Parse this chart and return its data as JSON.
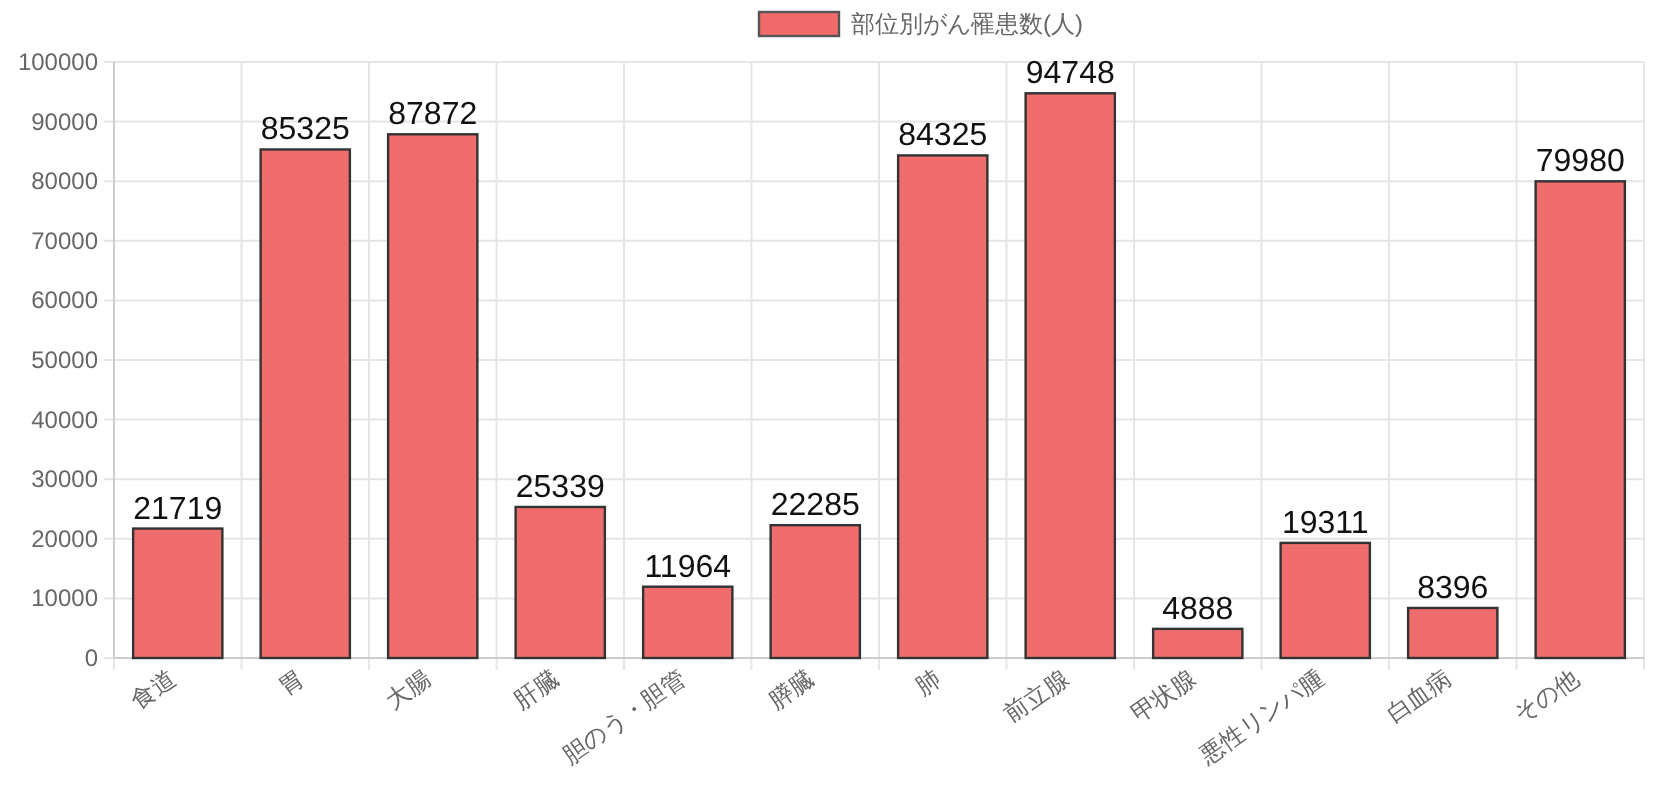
{
  "chart_data": {
    "type": "bar",
    "categories": [
      "食道",
      "胃",
      "大腸",
      "肝臓",
      "胆のう・胆管",
      "膵臓",
      "肺",
      "前立腺",
      "甲状腺",
      "悪性リンパ腫",
      "白血病",
      "その他"
    ],
    "series": [
      {
        "name": "部位別がん罹患数(人)",
        "color": "#f06a6a",
        "values": [
          21719,
          85325,
          87872,
          25339,
          11964,
          22285,
          84325,
          94748,
          4888,
          19311,
          8396,
          79980
        ]
      }
    ],
    "ylim": [
      0,
      100000
    ],
    "yticks": [
      0,
      10000,
      20000,
      30000,
      40000,
      50000,
      60000,
      70000,
      80000,
      90000,
      100000
    ],
    "grid": true,
    "legend": "top",
    "data_labels": true
  }
}
